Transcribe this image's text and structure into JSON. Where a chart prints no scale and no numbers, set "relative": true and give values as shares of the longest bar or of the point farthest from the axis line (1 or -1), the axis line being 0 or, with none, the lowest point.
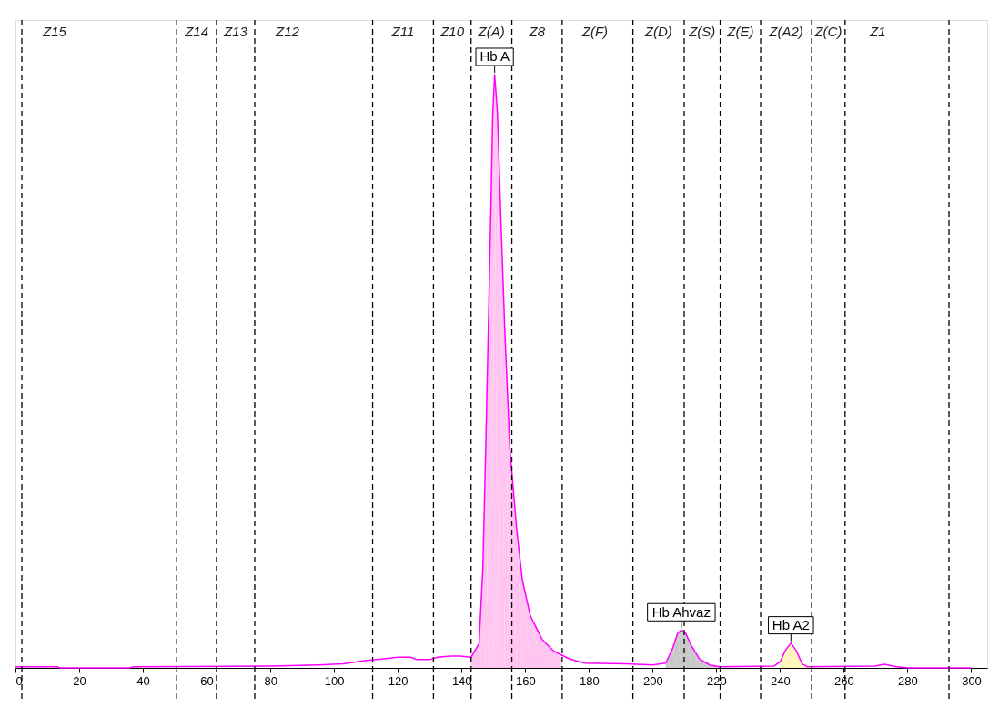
{
  "chart_data": {
    "type": "line",
    "relative": true,
    "xlim": [
      0,
      305
    ],
    "xticks": [
      0,
      20,
      40,
      60,
      80,
      100,
      120,
      140,
      160,
      180,
      200,
      220,
      240,
      260,
      280,
      300
    ],
    "series": [
      {
        "type": "area",
        "color": "#ffc4f0",
        "x": [
          143,
          145.5,
          146.7,
          147.6,
          148.4,
          149.2,
          149.8,
          150.4,
          151.3,
          152.3,
          153.6,
          155.2,
          157.3,
          159.1,
          161.6,
          165.3,
          169,
          171.4
        ],
        "values": [
          0.018,
          0.041,
          0.168,
          0.368,
          0.567,
          0.767,
          0.934,
          1.0,
          0.934,
          0.767,
          0.567,
          0.368,
          0.235,
          0.148,
          0.088,
          0.048,
          0.028,
          0.018
        ]
      },
      {
        "type": "area",
        "color": "#c8c8c8",
        "x": [
          204.1,
          206.2,
          207.8,
          209,
          210.4,
          212.1,
          214.7,
          217.9,
          221
        ],
        "values": [
          0.008,
          0.032,
          0.058,
          0.064,
          0.058,
          0.038,
          0.015,
          0.005,
          0.002
        ]
      },
      {
        "type": "area",
        "color": "#fff6bc",
        "x": [
          240,
          241.6,
          243.4,
          245.1,
          246.9,
          248.5
        ],
        "values": [
          0.01,
          0.029,
          0.042,
          0.029,
          0.007,
          0.002
        ]
      },
      {
        "color": "#ff00ff",
        "x": [
          0,
          13,
          14,
          36,
          37,
          80,
          95,
          103,
          109,
          115,
          120,
          124,
          126,
          130,
          132.5,
          136.5,
          139.5,
          143,
          145.5,
          146.7,
          147.6,
          148.4,
          149.2,
          149.8,
          150.4,
          151.3,
          152.3,
          153.6,
          155.2,
          157.3,
          159.1,
          161.6,
          165.3,
          169,
          174,
          178.8,
          191.5,
          200,
          204.1,
          206.2,
          207.8,
          209,
          210.4,
          212.1,
          214.7,
          217.9,
          221,
          238,
          240,
          241.6,
          243.4,
          245.1,
          246.9,
          248.5,
          269.7,
          272.8,
          276.5,
          280.2,
          300
        ],
        "values": [
          0.002,
          0.002,
          0,
          0,
          0.002,
          0.003,
          0.005,
          0.007,
          0.012,
          0.015,
          0.018,
          0.018,
          0.014,
          0.014,
          0.018,
          0.02,
          0.02,
          0.018,
          0.041,
          0.168,
          0.368,
          0.567,
          0.767,
          0.934,
          1.0,
          0.934,
          0.767,
          0.567,
          0.368,
          0.235,
          0.148,
          0.088,
          0.048,
          0.028,
          0.015,
          0.008,
          0.007,
          0.005,
          0.008,
          0.032,
          0.058,
          0.064,
          0.058,
          0.038,
          0.015,
          0.005,
          0.002,
          0.003,
          0.01,
          0.029,
          0.042,
          0.029,
          0.007,
          0.002,
          0.003,
          0.006,
          0.002,
          0,
          0
        ]
      }
    ],
    "ref_lines": [
      {
        "axis": "x",
        "value": 2,
        "line_style": "dashed",
        "label": "Z15"
      },
      {
        "axis": "x",
        "value": 50.6,
        "line_style": "dashed",
        "label": "Z14"
      },
      {
        "axis": "x",
        "value": 63.1,
        "line_style": "dashed",
        "label": "Z13"
      },
      {
        "axis": "x",
        "value": 75.1,
        "line_style": "dashed",
        "label": "Z12"
      },
      {
        "axis": "x",
        "value": 112.1,
        "line_style": "dashed",
        "label": "Z11"
      },
      {
        "axis": "x",
        "value": 131.2,
        "line_style": "dashed",
        "label": "Z10"
      },
      {
        "axis": "x",
        "value": 143,
        "line_style": "dashed",
        "label": "Z(A)"
      },
      {
        "axis": "x",
        "value": 155.8,
        "line_style": "dashed",
        "label": "Z8"
      },
      {
        "axis": "x",
        "value": 171.6,
        "line_style": "dashed",
        "label": "Z(F)"
      },
      {
        "axis": "x",
        "value": 193.8,
        "line_style": "dashed",
        "label": "Z(D)"
      },
      {
        "axis": "x",
        "value": 209.9,
        "line_style": "dashed",
        "label": "Z(S)"
      },
      {
        "axis": "x",
        "value": 221.2,
        "line_style": "dashed",
        "label": "Z(E)"
      },
      {
        "axis": "x",
        "value": 233.9,
        "line_style": "dashed",
        "label": "Z(A2)"
      },
      {
        "axis": "x",
        "value": 249.9,
        "line_style": "dashed",
        "label": "Z(C)"
      },
      {
        "axis": "x",
        "value": 260.4,
        "line_style": "dashed",
        "label": "Z1"
      },
      {
        "axis": "x",
        "value": 293,
        "line_style": "dashed"
      }
    ],
    "annotations": [
      {
        "text": "Hb A",
        "x": 150.4,
        "y": 1.0
      },
      {
        "text": "Hb Ahvaz",
        "x": 209,
        "y": 0.064
      },
      {
        "text": "Hb A2",
        "x": 243.4,
        "y": 0.042
      }
    ]
  }
}
